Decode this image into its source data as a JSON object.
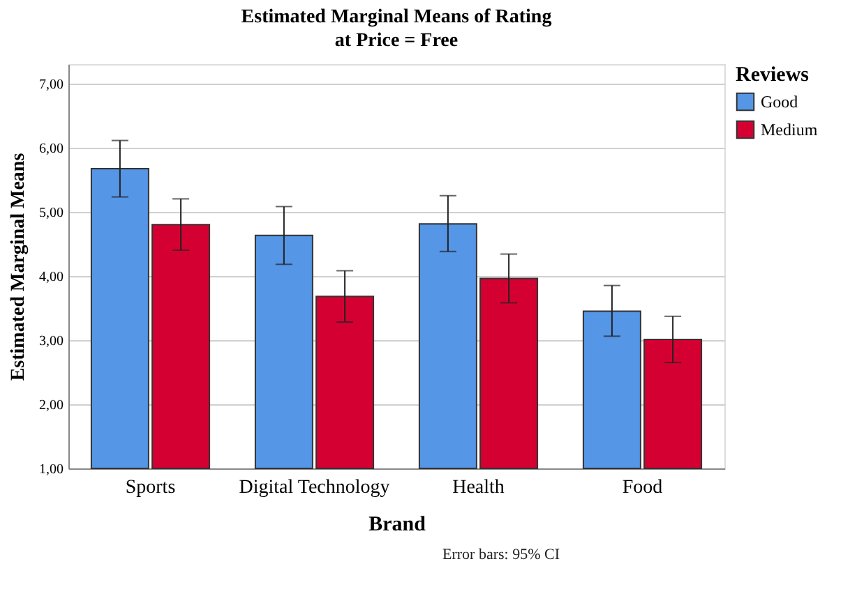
{
  "chart_data": {
    "type": "bar",
    "title": "Estimated Marginal Means of Rating",
    "subtitle": "at Price = Free",
    "xlabel": "Brand",
    "ylabel": "Estimated Marginal Means",
    "legend_title": "Reviews",
    "categories": [
      "Sports",
      "Digital Technology",
      "Health",
      "Food"
    ],
    "series": [
      {
        "name": "Good",
        "color": "#5596e6",
        "values": [
          5.67,
          4.63,
          4.81,
          3.45
        ],
        "errors": [
          [
            5.23,
            6.11
          ],
          [
            4.18,
            5.08
          ],
          [
            4.38,
            5.25
          ],
          [
            3.06,
            3.85
          ]
        ]
      },
      {
        "name": "Medium",
        "color": "#d50032",
        "values": [
          4.8,
          3.68,
          3.96,
          3.01
        ],
        "errors": [
          [
            4.4,
            5.2
          ],
          [
            3.28,
            4.08
          ],
          [
            3.58,
            4.34
          ],
          [
            2.65,
            3.37
          ]
        ]
      }
    ],
    "ylim": [
      1,
      7.3
    ],
    "yticks": [
      {
        "value": 1,
        "label": "1,00"
      },
      {
        "value": 2,
        "label": "2,00"
      },
      {
        "value": 3,
        "label": "3,00"
      },
      {
        "value": 4,
        "label": "4,00"
      },
      {
        "value": 5,
        "label": "5,00"
      },
      {
        "value": 6,
        "label": "6,00"
      },
      {
        "value": 7,
        "label": "7,00"
      }
    ],
    "grid": "y",
    "legend": "top right",
    "annotations": [
      "Error bars: 95% CI"
    ]
  }
}
